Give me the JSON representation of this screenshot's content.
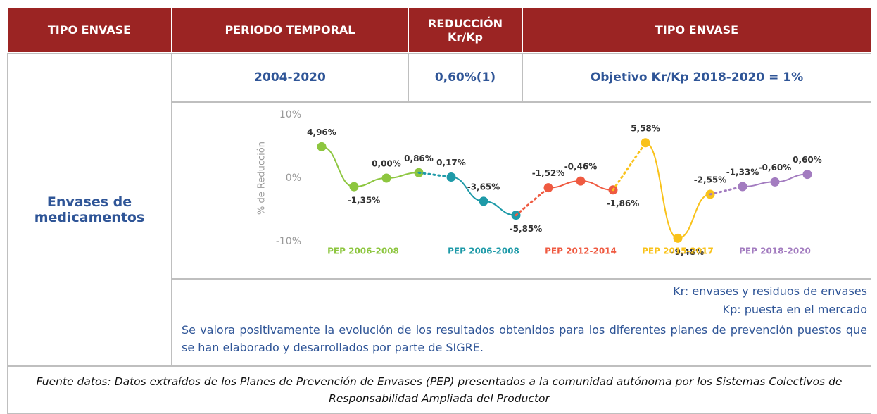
{
  "table": {
    "header": [
      "TIPO ENVASE",
      "PERIODO TEMPORAL",
      "REDUCCIÓN Kr/Kp",
      "TIPO ENVASE"
    ],
    "row_label": "Envases de medicamentos",
    "period": "2004-2020",
    "reduction": "0,60%(1)",
    "objective": "Objetivo Kr/Kp 2018-2020 = 1%",
    "notes": [
      "Kr: envases y residuos de envases",
      "Kp: puesta en el mercado"
    ],
    "comment": "Se valora positivamente la evolución de los resultados obtenidos para los diferentes planes de prevención puestos que se han elaborado y desarrollados por parte de SIGRE.",
    "source": "Fuente datos: Datos extraídos de los Planes de Prevención de Envases (PEP) presentados a la comunidad autónoma por los Sistemas Colectivos de Responsabilidad Ampliada del Productor"
  },
  "chart_data": {
    "type": "line",
    "ylabel": "% de Reducción",
    "categories": [
      null,
      null,
      null,
      null,
      null,
      null,
      null,
      null,
      null,
      null,
      null,
      null,
      null,
      null,
      null,
      null
    ],
    "ylim": [
      -10,
      10
    ],
    "yticks": [
      {
        "value": 10,
        "label": "10%"
      },
      {
        "value": 0,
        "label": "0%"
      },
      {
        "value": -10,
        "label": "-10%"
      }
    ],
    "series": [
      {
        "name": "PEP 2006-2008",
        "color": "#8dc63f",
        "values": [
          4.96,
          -1.35,
          0.0,
          0.86,
          null,
          null,
          null,
          null,
          null,
          null,
          null,
          null,
          null,
          null,
          null,
          null
        ],
        "value_labels": [
          "4,96%",
          "-1,35%",
          "0,00%",
          "0,86%",
          null,
          null,
          null,
          null,
          null,
          null,
          null,
          null,
          null,
          null,
          null,
          null
        ]
      },
      {
        "name": "PEP 2006-2008",
        "color": "#1e9aa8",
        "values": [
          null,
          null,
          null,
          null,
          0.17,
          -3.65,
          -5.85,
          null,
          null,
          null,
          null,
          null,
          null,
          null,
          null,
          null
        ],
        "value_labels": [
          null,
          null,
          null,
          null,
          "0,17%",
          "-3,65%",
          "-5,85%",
          null,
          null,
          null,
          null,
          null,
          null,
          null,
          null,
          null
        ]
      },
      {
        "name": "PEP 2012-2014",
        "color": "#ef5a41",
        "values": [
          null,
          null,
          null,
          null,
          null,
          null,
          null,
          -1.52,
          -0.46,
          -1.86,
          null,
          null,
          null,
          null,
          null,
          null
        ],
        "value_labels": [
          null,
          null,
          null,
          null,
          null,
          null,
          null,
          "-1,52%",
          "-0,46%",
          "-1,86%",
          null,
          null,
          null,
          null,
          null,
          null
        ]
      },
      {
        "name": "PEP 2015-2017",
        "color": "#f9c21a",
        "values": [
          null,
          null,
          null,
          null,
          null,
          null,
          null,
          null,
          null,
          null,
          5.58,
          -9.48,
          -2.55,
          null,
          null,
          null
        ],
        "value_labels": [
          null,
          null,
          null,
          null,
          null,
          null,
          null,
          null,
          null,
          null,
          "5,58%",
          "-9,48%",
          "-2,55%",
          null,
          null,
          null
        ]
      },
      {
        "name": "PEP 2018-2020",
        "color": "#a37cc0",
        "values": [
          null,
          null,
          null,
          null,
          null,
          null,
          null,
          null,
          null,
          null,
          null,
          null,
          null,
          -1.33,
          -0.6,
          0.6
        ],
        "value_labels": [
          null,
          null,
          null,
          null,
          null,
          null,
          null,
          null,
          null,
          null,
          null,
          null,
          null,
          "-1,33%",
          "-0,60%",
          "0,60%"
        ]
      }
    ]
  }
}
